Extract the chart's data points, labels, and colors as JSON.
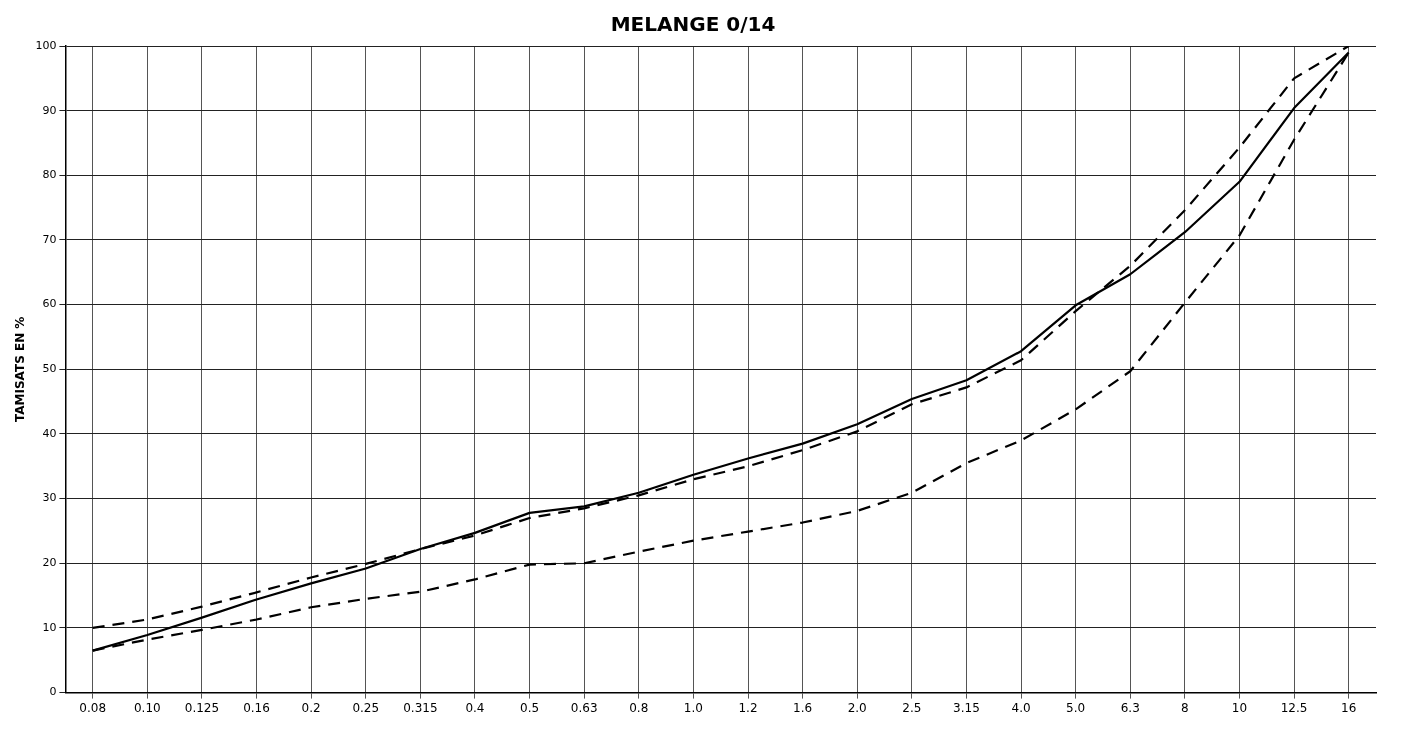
{
  "chart_data": {
    "type": "line",
    "title": "MELANGE 0/14",
    "ylabel": "TAMISATS EN %",
    "categories": [
      "0.08",
      "0.10",
      "0.125",
      "0.16",
      "0.2",
      "0.25",
      "0.315",
      "0.4",
      "0.5",
      "0.63",
      "0.8",
      "1.0",
      "1.2",
      "1.6",
      "2.0",
      "2.5",
      "3.15",
      "4.0",
      "5.0",
      "6.3",
      "8",
      "10",
      "12.5",
      "16"
    ],
    "series": [
      {
        "color": "#000000",
        "line_style": "solid",
        "values": [
          6.5,
          8.9,
          11.6,
          14.4,
          16.9,
          19.2,
          22.2,
          24.7,
          27.8,
          28.8,
          30.9,
          33.7,
          36.2,
          38.5,
          41.5,
          45.4,
          48.3,
          52.8,
          59.9,
          64.7,
          71.2,
          79,
          90.4,
          99
        ]
      },
      {
        "color": "#000000",
        "line_style": "dashed",
        "values": [
          10,
          11.3,
          13.3,
          15.5,
          17.8,
          19.9,
          22.2,
          24.3,
          27,
          28.5,
          30.5,
          33,
          35,
          37.5,
          40.4,
          44.6,
          47.2,
          51.4,
          59,
          66,
          74.6,
          84.3,
          95,
          100
        ]
      },
      {
        "color": "#000000",
        "line_style": "dashed",
        "values": [
          6.5,
          8.2,
          9.7,
          11.3,
          13.2,
          14.5,
          15.6,
          17.5,
          19.8,
          20,
          21.8,
          23.5,
          24.9,
          26.3,
          28.1,
          30.9,
          35.5,
          39,
          43.8,
          49.7,
          60.3,
          70.7,
          85.5,
          99
        ]
      }
    ],
    "ylim": [
      0,
      100
    ],
    "yticks": [
      0,
      10,
      20,
      30,
      40,
      50,
      60,
      70,
      80,
      90,
      100
    ],
    "grid": true,
    "legend": false,
    "marker": "none"
  }
}
